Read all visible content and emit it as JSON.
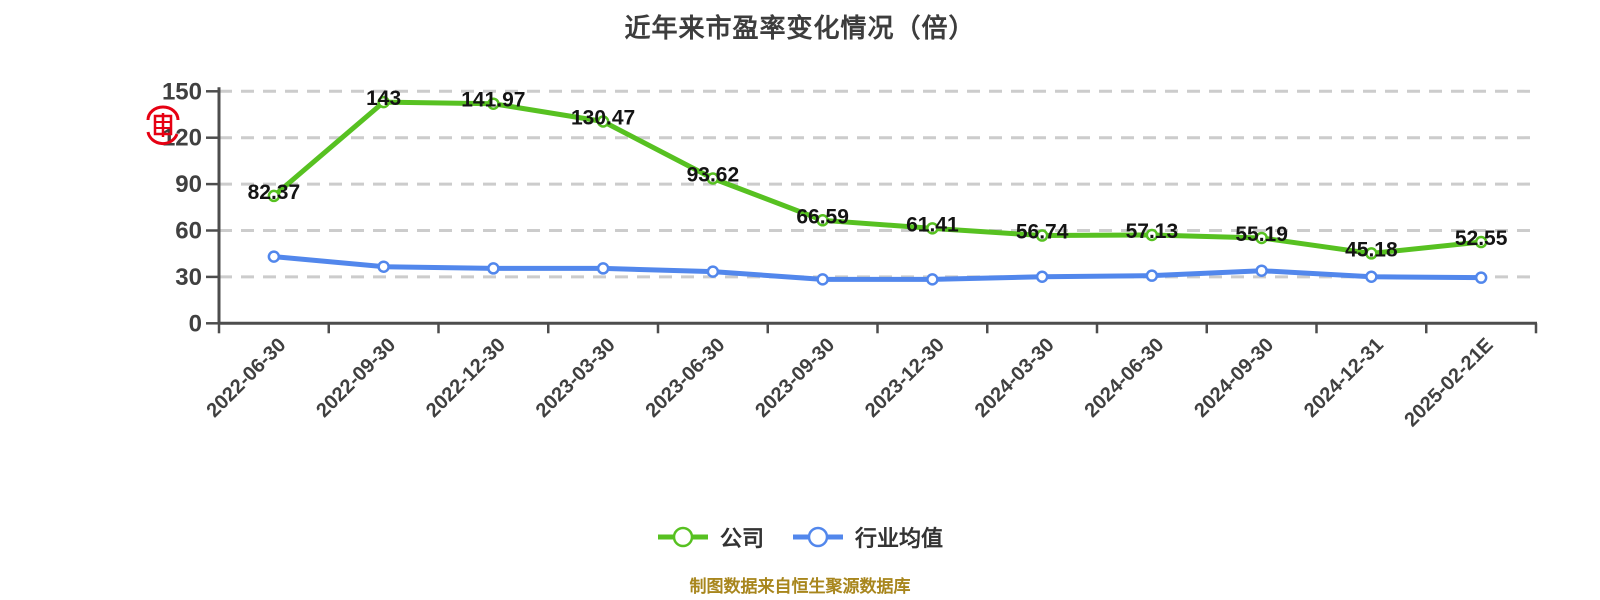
{
  "title": "近年来市盈率变化情况（倍）",
  "caption": "制图数据来自恒生聚源数据库",
  "watermark": {
    "icon": "red-seal-stamp",
    "color": "#e60012"
  },
  "legend": [
    {
      "label": "公司",
      "color": "#57c121"
    },
    {
      "label": "行业均值",
      "color": "#5287ec"
    }
  ],
  "colors": {
    "background": "#ffffff",
    "title_text": "#3d3d3d",
    "axis": "#4d4d4d",
    "tick_label": "#404040",
    "grid": "#cccccc",
    "data_label": "#141414",
    "legend_text": "#333333",
    "caption_text": "#a8861d",
    "marker_fill": "#ffffff",
    "series_company": "#57c121",
    "series_industry": "#5287ec"
  },
  "chart_data": {
    "type": "line",
    "title": "近年来市盈率变化情况（倍）",
    "categories": [
      "2022-06-30",
      "2022-09-30",
      "2022-12-30",
      "2023-03-30",
      "2023-06-30",
      "2023-09-30",
      "2023-12-30",
      "2024-03-30",
      "2024-06-30",
      "2024-09-30",
      "2024-12-31",
      "2025-02-21E"
    ],
    "series": [
      {
        "name": "公司",
        "color": "#57c121",
        "show_labels": true,
        "values": [
          82.37,
          143,
          141.97,
          130.47,
          93.62,
          66.59,
          61.41,
          56.74,
          57.13,
          55.19,
          45.18,
          52.55
        ]
      },
      {
        "name": "行业均值",
        "color": "#5287ec",
        "show_labels": false,
        "values": [
          43.1,
          36.6,
          35.5,
          35.5,
          33.4,
          28.4,
          28.4,
          30.1,
          30.8,
          34.0,
          30.1,
          29.5
        ]
      }
    ],
    "xlabel": "",
    "ylabel": "",
    "ylim": [
      0,
      150
    ],
    "yticks": [
      0,
      30,
      60,
      90,
      120,
      150
    ],
    "grid": "horizontal-dashed",
    "x_tick_rotation": -45,
    "legend_position": "bottom"
  }
}
